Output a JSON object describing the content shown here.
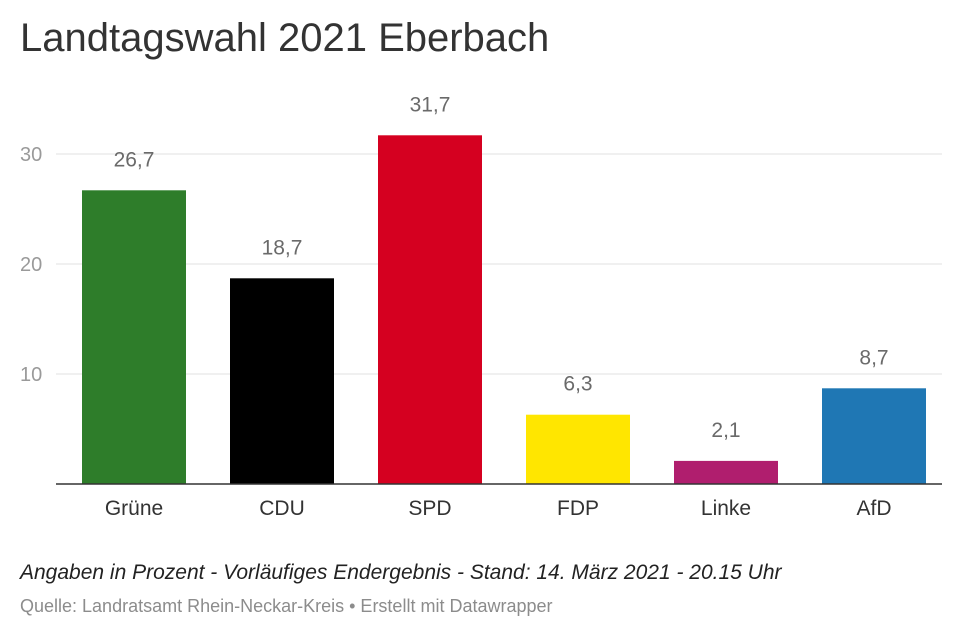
{
  "chart_data": {
    "type": "bar",
    "title": "Landtagswahl 2021 Eberbach",
    "categories": [
      "Grüne",
      "CDU",
      "SPD",
      "FDP",
      "Linke",
      "AfD"
    ],
    "values": [
      26.7,
      18.7,
      31.7,
      6.3,
      2.1,
      8.7
    ],
    "value_labels": [
      "26,7",
      "18,7",
      "31,7",
      "6,3",
      "2,1",
      "8,7"
    ],
    "colors": [
      "#2e7d2a",
      "#000000",
      "#d50020",
      "#ffe600",
      "#b01e6e",
      "#1f77b4"
    ],
    "yticks": [
      10,
      20,
      30
    ],
    "ylim": [
      0,
      30
    ],
    "grid": true,
    "xlabel": "",
    "ylabel": ""
  },
  "footer": {
    "note": "Angaben in Prozent - Vorläufiges Endergebnis - Stand: 14. März 2021 - 20.15 Uhr",
    "source": "Quelle: Landratsamt Rhein-Neckar-Kreis • Erstellt mit Datawrapper"
  }
}
